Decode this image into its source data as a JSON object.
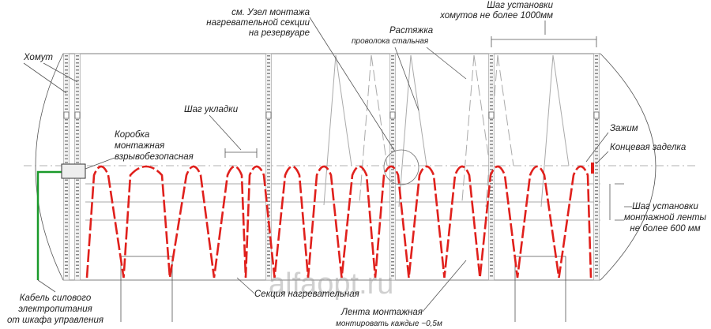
{
  "labels": {
    "clamp": "Хомут",
    "assembly_ref": [
      "см. Узел монтажа",
      "нагревательной секции",
      "на резервуаре"
    ],
    "clamp_spacing": [
      "Шаг установки",
      "хомутов не более 1000мм"
    ],
    "guy_wire": "Растяжка",
    "guy_wire_material": "проволока стальная",
    "laying_pitch": "Шаг укладки",
    "junction_box": [
      "Коробка",
      "монтажная",
      "взрывобезопасная"
    ],
    "terminal_clamp": "Зажим",
    "end_seal": "Концевая заделка",
    "tape_spacing": [
      "Шаг установки",
      "монтажной ленты",
      "не более 600 мм"
    ],
    "power_cable": [
      "Кабель силового",
      "электропитания",
      "от шкафа управления"
    ],
    "heating_section": "Секция нагревательная",
    "mounting_tape": "Лента монтажная",
    "tape_interval": "монтировать каждые ~0,5м",
    "watermark": "alfaopt.ru"
  }
}
